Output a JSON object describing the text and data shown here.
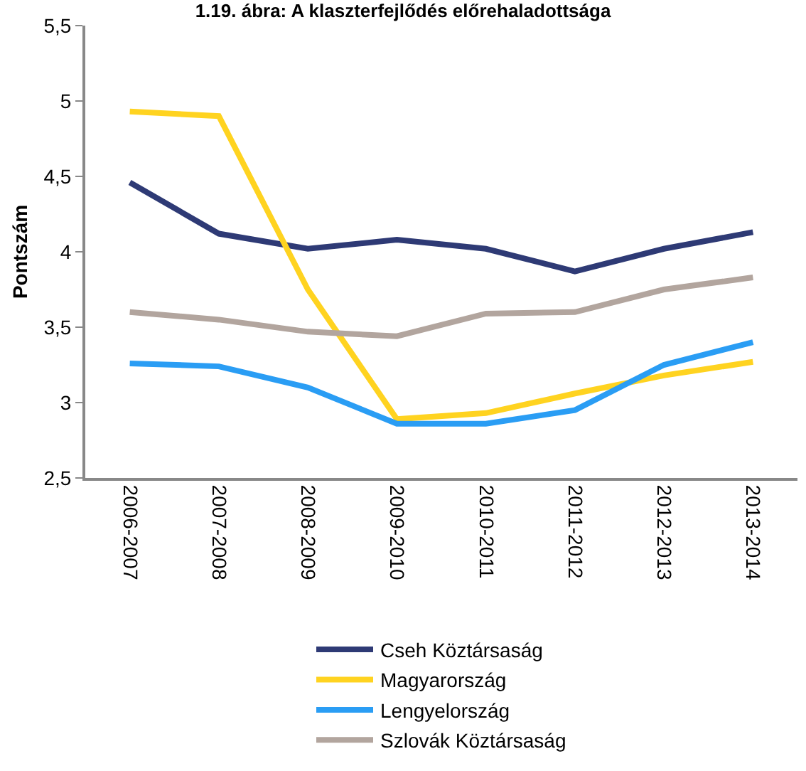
{
  "chart_data": {
    "type": "line",
    "title": "1.19. ábra: A klaszterfejlődés előrehaladottsága",
    "ylabel": "Pontszám",
    "categories": [
      "2006-2007",
      "2007-2008",
      "2008-2009",
      "2009-2010",
      "2010-2011",
      "2011-2012",
      "2012-2013",
      "2013-2014"
    ],
    "series": [
      {
        "name": "Cseh Köztársaság",
        "color": "#2e3a75",
        "values": [
          4.46,
          4.12,
          4.02,
          4.08,
          4.02,
          3.87,
          4.02,
          4.13
        ]
      },
      {
        "name": "Magyarország",
        "color": "#ffd320",
        "values": [
          4.93,
          4.9,
          3.75,
          2.89,
          2.93,
          3.06,
          3.18,
          3.27
        ]
      },
      {
        "name": "Lengyelország",
        "color": "#2a9df4",
        "values": [
          3.26,
          3.24,
          3.1,
          2.86,
          2.86,
          2.95,
          3.25,
          3.4
        ]
      },
      {
        "name": "Szlovák Köztársaság",
        "color": "#b2a59e",
        "values": [
          3.6,
          3.55,
          3.47,
          3.44,
          3.59,
          3.6,
          3.75,
          3.83
        ]
      }
    ],
    "ylim": [
      2.5,
      5.5
    ],
    "yticks": [
      {
        "value": 2.5,
        "label": "2,5"
      },
      {
        "value": 3,
        "label": "3"
      },
      {
        "value": 3.5,
        "label": "3,5"
      },
      {
        "value": 4,
        "label": "4"
      },
      {
        "value": 4.5,
        "label": "4,5"
      },
      {
        "value": 5,
        "label": "5"
      },
      {
        "value": 5.5,
        "label": "5,5"
      }
    ],
    "legend": "bottom",
    "marker": "none",
    "line_style": "solid"
  }
}
